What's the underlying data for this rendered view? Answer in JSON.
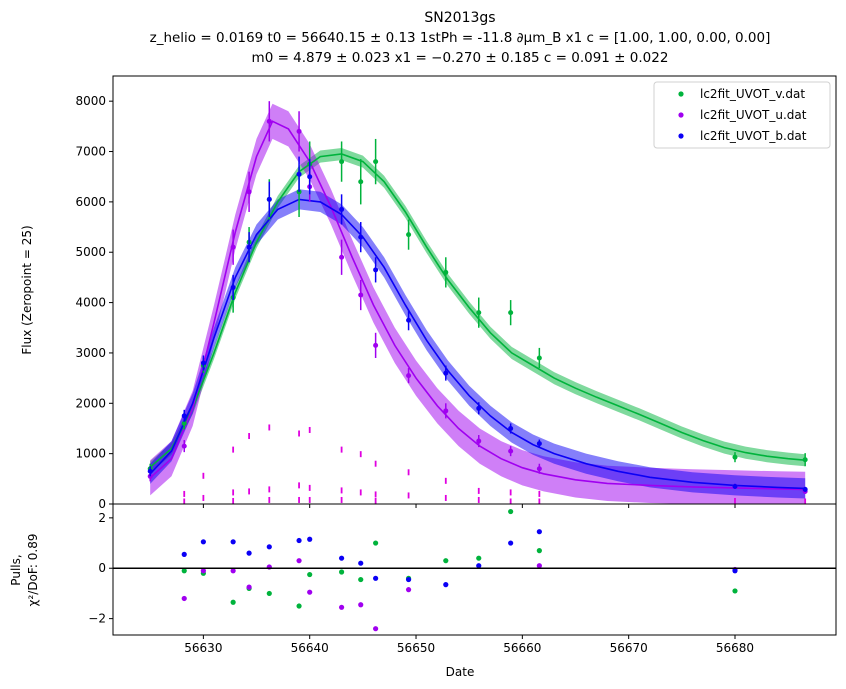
{
  "chart_data": {
    "type": "scatter",
    "title_lines": [
      "SN2013gs",
      "z_helio = 0.0169 t0 = 56640.15 ± 0.13 1stPh = -11.8 ∂μm_B x1 c = [1.00,  1.00,  0.00,  0.00]",
      "m0 = 4.879 ± 0.023 x1 = −0.270 ± 0.185 c = 0.091 ± 0.022"
    ],
    "xlabel": "Date",
    "ylabel_top": "Flux (Zeropoint = 25)",
    "ylabel_bottom_lines": [
      "Pulls,",
      "χ²/DoF: 0.89"
    ],
    "xlim": [
      56621.5,
      56689.5
    ],
    "top_ylim": [
      0,
      8500
    ],
    "bottom_ylim": [
      -2.65,
      2.55
    ],
    "x_ticks": [
      56630,
      56640,
      56650,
      56660,
      56670,
      56680
    ],
    "top_y_ticks": [
      0,
      1000,
      2000,
      3000,
      4000,
      5000,
      6000,
      7000,
      8000
    ],
    "bottom_y_ticks": [
      -2,
      0,
      2
    ],
    "legend_position": "top-right",
    "grid": false,
    "series": [
      {
        "name": "lc2fit_UVOT_v.dat",
        "color": "#00b33c",
        "points": [
          {
            "x": 56625.0,
            "y": 700,
            "err": 100
          },
          {
            "x": 56628.2,
            "y": 1600,
            "err": 120
          },
          {
            "x": 56630.0,
            "y": 2750,
            "err": 150
          },
          {
            "x": 56632.8,
            "y": 4100,
            "err": 300
          },
          {
            "x": 56634.3,
            "y": 5200,
            "err": 300
          },
          {
            "x": 56636.2,
            "y": 6050,
            "err": 400
          },
          {
            "x": 56639.0,
            "y": 6200,
            "err": 500
          },
          {
            "x": 56640.0,
            "y": 6750,
            "err": 450
          },
          {
            "x": 56643.0,
            "y": 6800,
            "err": 400
          },
          {
            "x": 56644.8,
            "y": 6400,
            "err": 450
          },
          {
            "x": 56646.2,
            "y": 6800,
            "err": 450
          },
          {
            "x": 56649.3,
            "y": 5350,
            "err": 300
          },
          {
            "x": 56652.8,
            "y": 4600,
            "err": 300
          },
          {
            "x": 56655.9,
            "y": 3800,
            "err": 300
          },
          {
            "x": 56658.9,
            "y": 3800,
            "err": 250
          },
          {
            "x": 56661.6,
            "y": 2900,
            "err": 200
          },
          {
            "x": 56680.0,
            "y": 930,
            "err": 100
          },
          {
            "x": 56686.6,
            "y": 880,
            "err": 130
          }
        ],
        "model": [
          {
            "x": 56625.0,
            "y": 730
          },
          {
            "x": 56627.0,
            "y": 1100
          },
          {
            "x": 56629.0,
            "y": 1900
          },
          {
            "x": 56631.0,
            "y": 3000
          },
          {
            "x": 56633.0,
            "y": 4200
          },
          {
            "x": 56635.0,
            "y": 5200
          },
          {
            "x": 56637.0,
            "y": 6000
          },
          {
            "x": 56639.0,
            "y": 6600
          },
          {
            "x": 56641.0,
            "y": 6900
          },
          {
            "x": 56643.0,
            "y": 6950
          },
          {
            "x": 56645.0,
            "y": 6800
          },
          {
            "x": 56647.0,
            "y": 6400
          },
          {
            "x": 56649.0,
            "y": 5800
          },
          {
            "x": 56651.0,
            "y": 5100
          },
          {
            "x": 56653.0,
            "y": 4450
          },
          {
            "x": 56655.0,
            "y": 3900
          },
          {
            "x": 56657.0,
            "y": 3400
          },
          {
            "x": 56659.0,
            "y": 3000
          },
          {
            "x": 56661.0,
            "y": 2750
          },
          {
            "x": 56663.0,
            "y": 2500
          },
          {
            "x": 56665.0,
            "y": 2300
          },
          {
            "x": 56667.0,
            "y": 2120
          },
          {
            "x": 56669.0,
            "y": 1950
          },
          {
            "x": 56671.0,
            "y": 1780
          },
          {
            "x": 56673.0,
            "y": 1600
          },
          {
            "x": 56675.0,
            "y": 1420
          },
          {
            "x": 56677.0,
            "y": 1260
          },
          {
            "x": 56679.0,
            "y": 1120
          },
          {
            "x": 56681.0,
            "y": 1020
          },
          {
            "x": 56683.0,
            "y": 950
          },
          {
            "x": 56685.0,
            "y": 900
          },
          {
            "x": 56686.6,
            "y": 870
          }
        ],
        "band_halfwidth": 120,
        "pulls": [
          {
            "x": 56628.2,
            "y": -0.1
          },
          {
            "x": 56630.0,
            "y": -0.2
          },
          {
            "x": 56632.8,
            "y": -1.35
          },
          {
            "x": 56634.3,
            "y": -0.8
          },
          {
            "x": 56636.2,
            "y": -1.0
          },
          {
            "x": 56639.0,
            "y": -1.5
          },
          {
            "x": 56640.0,
            "y": -0.25
          },
          {
            "x": 56643.0,
            "y": -0.15
          },
          {
            "x": 56644.8,
            "y": -0.45
          },
          {
            "x": 56646.2,
            "y": 1.0
          },
          {
            "x": 56649.3,
            "y": -0.4
          },
          {
            "x": 56652.8,
            "y": 0.3
          },
          {
            "x": 56655.9,
            "y": 0.4
          },
          {
            "x": 56658.9,
            "y": 2.25
          },
          {
            "x": 56661.6,
            "y": 0.7
          },
          {
            "x": 56680.0,
            "y": -0.9
          }
        ]
      },
      {
        "name": "lc2fit_UVOT_u.dat",
        "color": "#a000f0",
        "points": [
          {
            "x": 56625.0,
            "y": 550,
            "err": 100
          },
          {
            "x": 56628.2,
            "y": 1150,
            "err": 120
          },
          {
            "x": 56632.8,
            "y": 5100,
            "err": 350
          },
          {
            "x": 56634.3,
            "y": 6200,
            "err": 400
          },
          {
            "x": 56636.2,
            "y": 7600,
            "err": 400
          },
          {
            "x": 56639.0,
            "y": 7400,
            "err": 400
          },
          {
            "x": 56640.0,
            "y": 6300,
            "err": 300
          },
          {
            "x": 56643.0,
            "y": 4900,
            "err": 350
          },
          {
            "x": 56644.8,
            "y": 4150,
            "err": 300
          },
          {
            "x": 56646.2,
            "y": 3150,
            "err": 250
          },
          {
            "x": 56649.3,
            "y": 2550,
            "err": 150
          },
          {
            "x": 56652.8,
            "y": 1850,
            "err": 150
          },
          {
            "x": 56655.9,
            "y": 1250,
            "err": 120
          },
          {
            "x": 56658.9,
            "y": 1050,
            "err": 100
          },
          {
            "x": 56661.6,
            "y": 700,
            "err": 100
          },
          {
            "x": 56680.0,
            "y": 350,
            "err": 50
          },
          {
            "x": 56686.6,
            "y": 250,
            "err": 50
          }
        ],
        "model": [
          {
            "x": 56625.0,
            "y": 520
          },
          {
            "x": 56627.0,
            "y": 900
          },
          {
            "x": 56629.0,
            "y": 1900
          },
          {
            "x": 56631.0,
            "y": 3600
          },
          {
            "x": 56633.0,
            "y": 5400
          },
          {
            "x": 56635.0,
            "y": 6900
          },
          {
            "x": 56636.5,
            "y": 7600
          },
          {
            "x": 56638.0,
            "y": 7450
          },
          {
            "x": 56640.0,
            "y": 6800
          },
          {
            "x": 56642.0,
            "y": 5900
          },
          {
            "x": 56644.0,
            "y": 4900
          },
          {
            "x": 56646.0,
            "y": 3950
          },
          {
            "x": 56648.0,
            "y": 3150
          },
          {
            "x": 56650.0,
            "y": 2500
          },
          {
            "x": 56652.0,
            "y": 1950
          },
          {
            "x": 56654.0,
            "y": 1500
          },
          {
            "x": 56656.0,
            "y": 1150
          },
          {
            "x": 56658.0,
            "y": 900
          },
          {
            "x": 56660.0,
            "y": 720
          },
          {
            "x": 56662.0,
            "y": 600
          },
          {
            "x": 56665.0,
            "y": 480
          },
          {
            "x": 56668.0,
            "y": 410
          },
          {
            "x": 56672.0,
            "y": 370
          },
          {
            "x": 56676.0,
            "y": 340
          },
          {
            "x": 56680.0,
            "y": 320
          },
          {
            "x": 56684.0,
            "y": 300
          },
          {
            "x": 56686.6,
            "y": 290
          }
        ],
        "band_halfwidth": 350,
        "pulls": [
          {
            "x": 56628.2,
            "y": -1.2
          },
          {
            "x": 56630.0,
            "y": -0.1
          },
          {
            "x": 56632.8,
            "y": -0.1
          },
          {
            "x": 56634.3,
            "y": -0.75
          },
          {
            "x": 56636.2,
            "y": 0.05
          },
          {
            "x": 56639.0,
            "y": 0.3
          },
          {
            "x": 56640.0,
            "y": -0.95
          },
          {
            "x": 56643.0,
            "y": -1.55
          },
          {
            "x": 56644.8,
            "y": -1.45
          },
          {
            "x": 56646.2,
            "y": -2.4
          },
          {
            "x": 56649.3,
            "y": -0.85
          },
          {
            "x": 56661.6,
            "y": 0.1
          },
          {
            "x": 56680.0,
            "y": -0.05
          }
        ]
      },
      {
        "name": "lc2fit_UVOT_b.dat",
        "color": "#0b00f5",
        "points": [
          {
            "x": 56625.0,
            "y": 650,
            "err": 100
          },
          {
            "x": 56628.2,
            "y": 1750,
            "err": 120
          },
          {
            "x": 56630.0,
            "y": 2800,
            "err": 150
          },
          {
            "x": 56632.8,
            "y": 4300,
            "err": 250
          },
          {
            "x": 56634.3,
            "y": 5100,
            "err": 300
          },
          {
            "x": 56636.2,
            "y": 6050,
            "err": 350
          },
          {
            "x": 56639.0,
            "y": 6550,
            "err": 350
          },
          {
            "x": 56640.0,
            "y": 6500,
            "err": 350
          },
          {
            "x": 56643.0,
            "y": 5850,
            "err": 300
          },
          {
            "x": 56644.8,
            "y": 5300,
            "err": 300
          },
          {
            "x": 56646.2,
            "y": 4650,
            "err": 250
          },
          {
            "x": 56649.3,
            "y": 3650,
            "err": 200
          },
          {
            "x": 56652.8,
            "y": 2600,
            "err": 150
          },
          {
            "x": 56655.9,
            "y": 1900,
            "err": 120
          },
          {
            "x": 56658.9,
            "y": 1500,
            "err": 100
          },
          {
            "x": 56661.6,
            "y": 1200,
            "err": 80
          },
          {
            "x": 56680.0,
            "y": 350,
            "err": 50
          },
          {
            "x": 56686.6,
            "y": 290,
            "err": 50
          }
        ],
        "model": [
          {
            "x": 56625.0,
            "y": 600
          },
          {
            "x": 56627.0,
            "y": 1050
          },
          {
            "x": 56629.0,
            "y": 2000
          },
          {
            "x": 56631.0,
            "y": 3300
          },
          {
            "x": 56633.0,
            "y": 4500
          },
          {
            "x": 56635.0,
            "y": 5350
          },
          {
            "x": 56637.0,
            "y": 5850
          },
          {
            "x": 56639.0,
            "y": 6050
          },
          {
            "x": 56641.0,
            "y": 6000
          },
          {
            "x": 56643.0,
            "y": 5750
          },
          {
            "x": 56645.0,
            "y": 5300
          },
          {
            "x": 56647.0,
            "y": 4700
          },
          {
            "x": 56649.0,
            "y": 3950
          },
          {
            "x": 56651.0,
            "y": 3250
          },
          {
            "x": 56653.0,
            "y": 2650
          },
          {
            "x": 56655.0,
            "y": 2150
          },
          {
            "x": 56657.0,
            "y": 1750
          },
          {
            "x": 56659.0,
            "y": 1420
          },
          {
            "x": 56661.0,
            "y": 1180
          },
          {
            "x": 56663.0,
            "y": 1000
          },
          {
            "x": 56666.0,
            "y": 800
          },
          {
            "x": 56669.0,
            "y": 650
          },
          {
            "x": 56672.0,
            "y": 530
          },
          {
            "x": 56676.0,
            "y": 430
          },
          {
            "x": 56680.0,
            "y": 370
          },
          {
            "x": 56684.0,
            "y": 330
          },
          {
            "x": 56686.6,
            "y": 310
          }
        ],
        "band_halfwidth": 200,
        "pulls": [
          {
            "x": 56628.2,
            "y": 0.55
          },
          {
            "x": 56630.0,
            "y": 1.05
          },
          {
            "x": 56632.8,
            "y": 1.05
          },
          {
            "x": 56634.3,
            "y": 0.6
          },
          {
            "x": 56636.2,
            "y": 0.85
          },
          {
            "x": 56639.0,
            "y": 1.1
          },
          {
            "x": 56640.0,
            "y": 1.15
          },
          {
            "x": 56643.0,
            "y": 0.4
          },
          {
            "x": 56644.8,
            "y": 0.2
          },
          {
            "x": 56646.2,
            "y": -0.4
          },
          {
            "x": 56649.3,
            "y": -0.45
          },
          {
            "x": 56652.8,
            "y": -0.65
          },
          {
            "x": 56655.9,
            "y": 0.1
          },
          {
            "x": 56658.9,
            "y": 1.0
          },
          {
            "x": 56661.6,
            "y": 1.45
          },
          {
            "x": 56680.0,
            "y": -0.1
          }
        ]
      }
    ],
    "residual_markers": {
      "color": "#e000e0",
      "points": [
        {
          "x": 56628.2,
          "y": 200
        },
        {
          "x": 56628.2,
          "y": 50
        },
        {
          "x": 56630.0,
          "y": 560
        },
        {
          "x": 56630.0,
          "y": 120
        },
        {
          "x": 56632.8,
          "y": 1080
        },
        {
          "x": 56632.8,
          "y": 230
        },
        {
          "x": 56632.8,
          "y": 60
        },
        {
          "x": 56634.3,
          "y": 1350
        },
        {
          "x": 56634.3,
          "y": 250
        },
        {
          "x": 56636.2,
          "y": 1520
        },
        {
          "x": 56636.2,
          "y": 290
        },
        {
          "x": 56636.2,
          "y": 80
        },
        {
          "x": 56639.0,
          "y": 1400
        },
        {
          "x": 56639.0,
          "y": 370
        },
        {
          "x": 56639.0,
          "y": 80
        },
        {
          "x": 56640.0,
          "y": 1470
        },
        {
          "x": 56640.0,
          "y": 320
        },
        {
          "x": 56640.0,
          "y": 80
        },
        {
          "x": 56643.0,
          "y": 1080
        },
        {
          "x": 56643.0,
          "y": 270
        },
        {
          "x": 56643.0,
          "y": 80
        },
        {
          "x": 56644.8,
          "y": 990
        },
        {
          "x": 56644.8,
          "y": 230
        },
        {
          "x": 56646.2,
          "y": 800
        },
        {
          "x": 56646.2,
          "y": 190
        },
        {
          "x": 56646.2,
          "y": 60
        },
        {
          "x": 56649.3,
          "y": 630
        },
        {
          "x": 56649.3,
          "y": 170
        },
        {
          "x": 56652.8,
          "y": 460
        },
        {
          "x": 56652.8,
          "y": 120
        },
        {
          "x": 56655.9,
          "y": 260
        },
        {
          "x": 56655.9,
          "y": 80
        },
        {
          "x": 56658.9,
          "y": 230
        },
        {
          "x": 56658.9,
          "y": 50
        },
        {
          "x": 56661.6,
          "y": 200
        },
        {
          "x": 56661.6,
          "y": 50
        },
        {
          "x": 56680.0,
          "y": 60
        },
        {
          "x": 56686.6,
          "y": 50
        }
      ]
    }
  }
}
